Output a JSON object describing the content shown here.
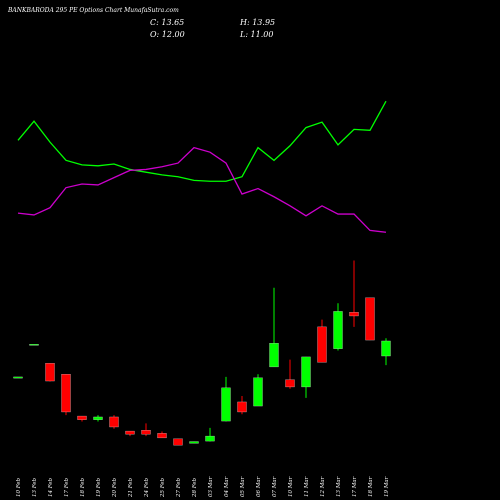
{
  "chart_data": {
    "type": "candlestick",
    "title": "BANKBARODA 295 PE Options  Chart MunafaSutra.com",
    "header": [
      "C: 13.65",
      "H: 13.95",
      "O: 12.00",
      "L: 11.00"
    ],
    "categories": [
      "10 Feb",
      "13 Feb",
      "14 Feb",
      "17 Feb",
      "18 Feb",
      "19 Feb",
      "20 Feb",
      "21 Feb",
      "24 Feb",
      "25 Feb",
      "27 Feb",
      "28 Feb",
      "03 Mar",
      "04 Mar",
      "05 Mar",
      "06 Mar",
      "07 Mar",
      "10 Mar",
      "11 Mar",
      "12 Mar",
      "13 Mar",
      "17 Mar",
      "18 Mar",
      "19 Mar"
    ],
    "open": [
      9.7,
      13.3,
      11.2,
      10.0,
      5.4,
      5.0,
      5.3,
      3.75,
      3.85,
      3.5,
      2.9,
      2.4,
      2.65,
      4.85,
      6.95,
      6.5,
      10.8,
      9.4,
      8.6,
      15.2,
      12.8,
      16.8,
      18.4,
      12.0
    ],
    "high": [
      9.7,
      13.3,
      11.2,
      10.0,
      5.4,
      5.5,
      5.5,
      3.75,
      4.6,
      3.7,
      2.9,
      2.6,
      4.1,
      9.7,
      7.6,
      10.0,
      19.5,
      11.6,
      11.9,
      16.0,
      17.8,
      22.5,
      18.4,
      13.95
    ],
    "low": [
      9.7,
      13.3,
      9.2,
      5.5,
      4.8,
      4.8,
      4.0,
      3.2,
      3.2,
      3.0,
      2.2,
      2.4,
      2.6,
      4.8,
      5.6,
      6.5,
      10.8,
      8.4,
      7.4,
      11.3,
      12.6,
      15.2,
      13.75,
      11.0
    ],
    "close": [
      9.7,
      13.3,
      9.25,
      5.85,
      5.0,
      5.3,
      4.2,
      3.4,
      3.4,
      3.0,
      2.2,
      2.6,
      3.2,
      8.5,
      5.85,
      9.6,
      13.4,
      8.6,
      11.9,
      11.3,
      16.9,
      16.4,
      13.75,
      13.65
    ],
    "up_color": "#00ff00",
    "down_color": "#ff0000",
    "lines": [
      {
        "color": "#00ff00",
        "values": [
          35.7,
          37.8,
          35.5,
          33.5,
          33.0,
          32.9,
          33.1,
          32.5,
          32.2,
          31.9,
          31.7,
          31.3,
          31.2,
          31.2,
          31.7,
          34.9,
          33.5,
          35.1,
          37.1,
          37.7,
          35.2,
          36.9,
          36.8,
          40.0
        ]
      },
      {
        "color": "#cc00cc",
        "values": [
          27.7,
          27.5,
          28.3,
          30.5,
          30.9,
          30.8,
          31.6,
          32.4,
          32.5,
          32.8,
          33.2,
          34.9,
          34.4,
          33.2,
          29.8,
          30.4,
          29.5,
          28.5,
          27.4,
          28.5,
          27.6,
          27.6,
          25.8,
          25.6
        ]
      }
    ],
    "ylim": [
      0,
      50
    ]
  }
}
